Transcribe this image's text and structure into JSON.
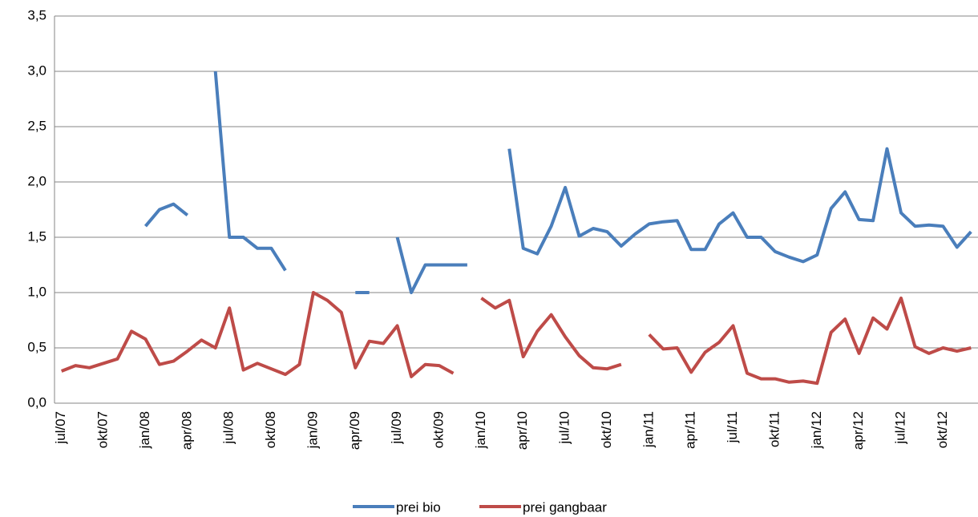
{
  "chart_data": {
    "type": "line",
    "categories": [
      "jul/07",
      null,
      null,
      "okt/07",
      null,
      null,
      "jan/08",
      null,
      null,
      "apr/08",
      null,
      null,
      "jul/08",
      null,
      null,
      "okt/08",
      null,
      null,
      "jan/09",
      null,
      null,
      "apr/09",
      null,
      null,
      "jul/09",
      null,
      null,
      "okt/09",
      null,
      null,
      "jan/10",
      null,
      null,
      "apr/10",
      null,
      null,
      "jul/10",
      null,
      null,
      "okt/10",
      null,
      null,
      "jan/11",
      null,
      null,
      "apr/11",
      null,
      null,
      "jul/11",
      null,
      null,
      "okt/11",
      null,
      null,
      "jan/12",
      null,
      null,
      "apr/12",
      null,
      null,
      "jul/12",
      null,
      null,
      "okt/12",
      null,
      null
    ],
    "series": [
      {
        "name": "prei bio",
        "color": "#4a7ebb",
        "values": [
          null,
          null,
          null,
          null,
          null,
          null,
          1.6,
          1.75,
          1.8,
          1.7,
          null,
          3.0,
          1.5,
          1.5,
          1.4,
          1.4,
          1.2,
          null,
          null,
          null,
          null,
          1.0,
          1.0,
          null,
          1.5,
          1.0,
          1.25,
          1.25,
          1.25,
          1.25,
          null,
          null,
          2.3,
          1.4,
          1.35,
          1.6,
          1.95,
          1.51,
          1.58,
          1.55,
          1.42,
          1.53,
          1.62,
          1.64,
          1.65,
          1.39,
          1.39,
          1.62,
          1.72,
          1.5,
          1.5,
          1.37,
          1.32,
          1.28,
          1.34,
          1.76,
          1.91,
          1.66,
          1.65,
          2.3,
          1.72,
          1.6,
          1.61,
          1.6,
          1.41,
          1.55
        ]
      },
      {
        "name": "prei gangbaar",
        "color": "#be4b48",
        "values": [
          0.29,
          0.34,
          0.32,
          0.36,
          0.4,
          0.65,
          0.58,
          0.35,
          0.38,
          0.47,
          0.57,
          0.5,
          0.86,
          0.3,
          0.36,
          0.31,
          0.26,
          0.35,
          1.0,
          0.93,
          0.82,
          0.32,
          0.56,
          0.54,
          0.7,
          0.24,
          0.35,
          0.34,
          0.27,
          null,
          0.95,
          0.86,
          0.93,
          0.42,
          0.65,
          0.8,
          0.6,
          0.43,
          0.32,
          0.31,
          0.35,
          null,
          0.62,
          0.49,
          0.5,
          0.28,
          0.46,
          0.55,
          0.7,
          0.27,
          0.22,
          0.22,
          0.19,
          0.2,
          0.18,
          0.64,
          0.76,
          0.45,
          0.77,
          0.67,
          0.95,
          0.51,
          0.45,
          0.5,
          0.47,
          0.5
        ]
      }
    ],
    "ylim": [
      0,
      3.5
    ],
    "yticks": [
      {
        "value": 0,
        "label": "0,0"
      },
      {
        "value": 0.5,
        "label": "0,5"
      },
      {
        "value": 1.0,
        "label": "1,0"
      },
      {
        "value": 1.5,
        "label": "1,5"
      },
      {
        "value": 2.0,
        "label": "2,0"
      },
      {
        "value": 2.5,
        "label": "2,5"
      },
      {
        "value": 3.0,
        "label": "3,0"
      },
      {
        "value": 3.5,
        "label": "3,5"
      }
    ],
    "grid": true,
    "legend": "bottom"
  }
}
